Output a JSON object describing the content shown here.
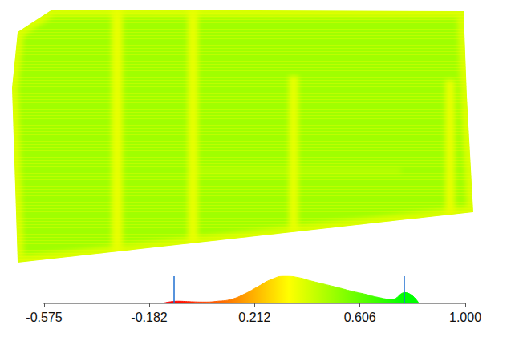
{
  "chart_data": {
    "type": "histogram",
    "bins": [
      -0.15,
      -0.1,
      -0.05,
      0.0,
      0.05,
      0.1,
      0.15,
      0.2,
      0.25,
      0.3,
      0.35,
      0.4,
      0.45,
      0.5,
      0.55,
      0.6,
      0.65,
      0.7,
      0.75,
      0.8,
      0.85
    ],
    "counts": [
      2,
      8,
      6,
      5,
      8,
      15,
      35,
      62,
      88,
      100,
      95,
      82,
      70,
      58,
      45,
      34,
      22,
      15,
      40,
      3
    ],
    "xlim": [
      -0.575,
      1.0
    ],
    "xticks": [
      -0.575,
      -0.182,
      0.212,
      0.606,
      {
        "value": 1.0,
        "label": "1.000"
      }
    ],
    "ylim": [
      0,
      100
    ],
    "tick_labels": "x",
    "grid": false,
    "color_scale": [
      "#ff0000",
      "#ffff00",
      "#00ff00"
    ],
    "display_range": [
      -0.09,
      0.77
    ],
    "point_cloud": {
      "field_value": 0.5,
      "stripe_value": 0.36
    }
  }
}
